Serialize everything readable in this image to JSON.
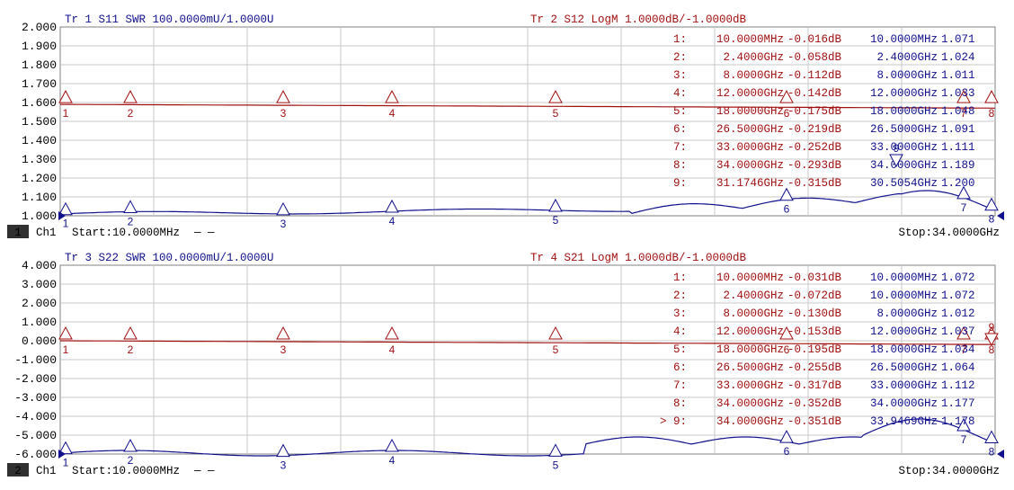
{
  "colors": {
    "trace_red": "#a01010",
    "trace_blue": "#10108c",
    "grid": "#c8c8c8",
    "frame": "#808080"
  },
  "channels": [
    {
      "number": "1",
      "channel_label": "Ch1",
      "start_label": "Start:10.0000MHz",
      "stop_label": "Stop:34.0000GHz",
      "legend_dash": "— —",
      "y_ticks": [
        "2.000",
        "1.900",
        "1.800",
        "1.700",
        "1.600",
        "1.500",
        "1.400",
        "1.300",
        "1.200",
        "1.100",
        "1.000"
      ],
      "left_trace_title": "Tr 1  S11 SWR 100.0000mU/1.0000U",
      "right_trace_title": "Tr 2  S12 LogM 1.0000dB/-1.0000dB",
      "marker_table": [
        {
          "num": "1:",
          "freq_red": "10.0000MHz",
          "val_red": "-0.016dB",
          "freq_blue": "10.0000MHz",
          "val_blue": "1.071"
        },
        {
          "num": "2:",
          "freq_red": "2.4000GHz",
          "val_red": "-0.058dB",
          "freq_blue": "2.4000GHz",
          "val_blue": "1.024"
        },
        {
          "num": "3:",
          "freq_red": "8.0000GHz",
          "val_red": "-0.112dB",
          "freq_blue": "8.0000GHz",
          "val_blue": "1.011"
        },
        {
          "num": "4:",
          "freq_red": "12.0000GHz",
          "val_red": "-0.142dB",
          "freq_blue": "12.0000GHz",
          "val_blue": "1.033"
        },
        {
          "num": "5:",
          "freq_red": "18.0000GHz",
          "val_red": "-0.175dB",
          "freq_blue": "18.0000GHz",
          "val_blue": "1.048"
        },
        {
          "num": "6:",
          "freq_red": "26.5000GHz",
          "val_red": "-0.219dB",
          "freq_blue": "26.5000GHz",
          "val_blue": "1.091"
        },
        {
          "num": "7:",
          "freq_red": "33.0000GHz",
          "val_red": "-0.252dB",
          "freq_blue": "33.0000GHz",
          "val_blue": "1.111"
        },
        {
          "num": "8:",
          "freq_red": "34.0000GHz",
          "val_red": "-0.293dB",
          "freq_blue": "34.0000GHz",
          "val_blue": "1.189"
        },
        {
          "num": "9:",
          "freq_red": "31.1746GHz",
          "val_red": "-0.315dB",
          "freq_blue": "30.5054GHz",
          "val_blue": "1.200"
        }
      ],
      "red_markers": [
        "1",
        "2",
        "3",
        "4",
        "5",
        "6",
        "7",
        "8"
      ],
      "blue_markers": [
        "1",
        "2",
        "3",
        "4",
        "5",
        "6",
        "7",
        "8"
      ],
      "blue_marker_9": "9"
    },
    {
      "number": "2",
      "channel_label": "Ch1",
      "start_label": "Start:10.0000MHz",
      "stop_label": "Stop:34.0000GHz",
      "legend_dash": "— —",
      "y_ticks": [
        "4.000",
        "3.000",
        "2.000",
        "1.000",
        "0.000",
        "-1.000",
        "-2.000",
        "-3.000",
        "-4.000",
        "-5.000",
        "-6.000"
      ],
      "left_trace_title": "Tr 3  S22 SWR 100.0000mU/1.0000U",
      "right_trace_title": "Tr 4  S21 LogM 1.0000dB/-1.0000dB",
      "active_marker_prefix": ">",
      "marker_table": [
        {
          "num": "1:",
          "freq_red": "10.0000MHz",
          "val_red": "-0.031dB",
          "freq_blue": "10.0000MHz",
          "val_blue": "1.072"
        },
        {
          "num": "2:",
          "freq_red": "2.4000GHz",
          "val_red": "-0.072dB",
          "freq_blue": "10.0000MHz",
          "val_blue": "1.072"
        },
        {
          "num": "3:",
          "freq_red": "8.0000GHz",
          "val_red": "-0.130dB",
          "freq_blue": "8.0000GHz",
          "val_blue": "1.012"
        },
        {
          "num": "4:",
          "freq_red": "12.0000GHz",
          "val_red": "-0.153dB",
          "freq_blue": "12.0000GHz",
          "val_blue": "1.037"
        },
        {
          "num": "5:",
          "freq_red": "18.0000GHz",
          "val_red": "-0.195dB",
          "freq_blue": "18.0000GHz",
          "val_blue": "1.034"
        },
        {
          "num": "6:",
          "freq_red": "26.5000GHz",
          "val_red": "-0.255dB",
          "freq_blue": "26.5000GHz",
          "val_blue": "1.064"
        },
        {
          "num": "7:",
          "freq_red": "33.0000GHz",
          "val_red": "-0.317dB",
          "freq_blue": "33.0000GHz",
          "val_blue": "1.112"
        },
        {
          "num": "8:",
          "freq_red": "34.0000GHz",
          "val_red": "-0.352dB",
          "freq_blue": "34.0000GHz",
          "val_blue": "1.177"
        },
        {
          "num": "9:",
          "freq_red": "34.0000GHz",
          "val_red": "-0.351dB",
          "freq_blue": "33.9469GHz",
          "val_blue": "1.178"
        }
      ],
      "red_markers": [
        "1",
        "2",
        "3",
        "4",
        "5",
        "6",
        "7",
        "8"
      ],
      "blue_markers": [
        "1",
        "2",
        "3",
        "4",
        "5",
        "6",
        "7",
        "8"
      ],
      "red_marker_9": "9"
    }
  ]
}
